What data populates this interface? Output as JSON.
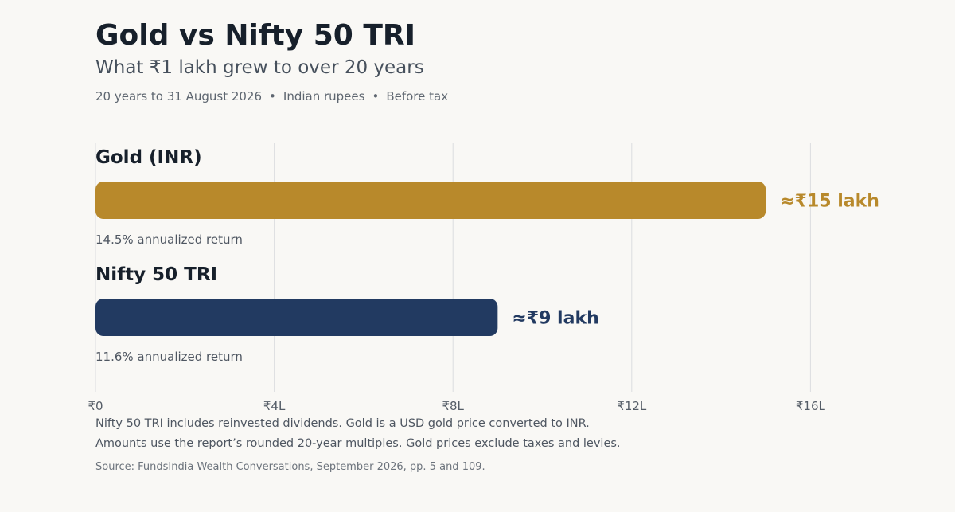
{
  "header": {
    "title": "Gold vs Nifty 50 TRI",
    "subtitle": "What ₹1 lakh grew to over 20 years",
    "meta": [
      "20 years to 31 August 2026",
      "Indian rupees",
      "Before tax"
    ]
  },
  "chart_data": {
    "type": "bar",
    "orientation": "horizontal",
    "xlim": [
      0,
      18
    ],
    "x_ticks": [
      0,
      4,
      8,
      12,
      16
    ],
    "x_tick_labels": [
      "₹0",
      "₹4L",
      "₹8L",
      "₹12L",
      "₹16L"
    ],
    "grid": true,
    "series": [
      {
        "name": "Gold (INR)",
        "value": 15,
        "value_label": "≈₹15 lakh",
        "note": "14.5% annualized return",
        "color": "#b8892b"
      },
      {
        "name": "Nifty 50 TRI",
        "value": 9,
        "value_label": "≈₹9 lakh",
        "note": "11.6% annualized return",
        "color": "#223a61"
      }
    ]
  },
  "footer": {
    "notes": [
      "Nifty 50 TRI includes reinvested dividends. Gold is a USD gold price converted to INR.",
      "Amounts use the report’s rounded 20-year multiples. Gold prices exclude taxes and levies."
    ],
    "source": "Source: FundsIndia Wealth Conversations, September 2026, pp. 5 and 109."
  },
  "colors": {
    "background": "#f9f8f5",
    "gridline": "#dcdde0",
    "heading": "#17202b"
  }
}
